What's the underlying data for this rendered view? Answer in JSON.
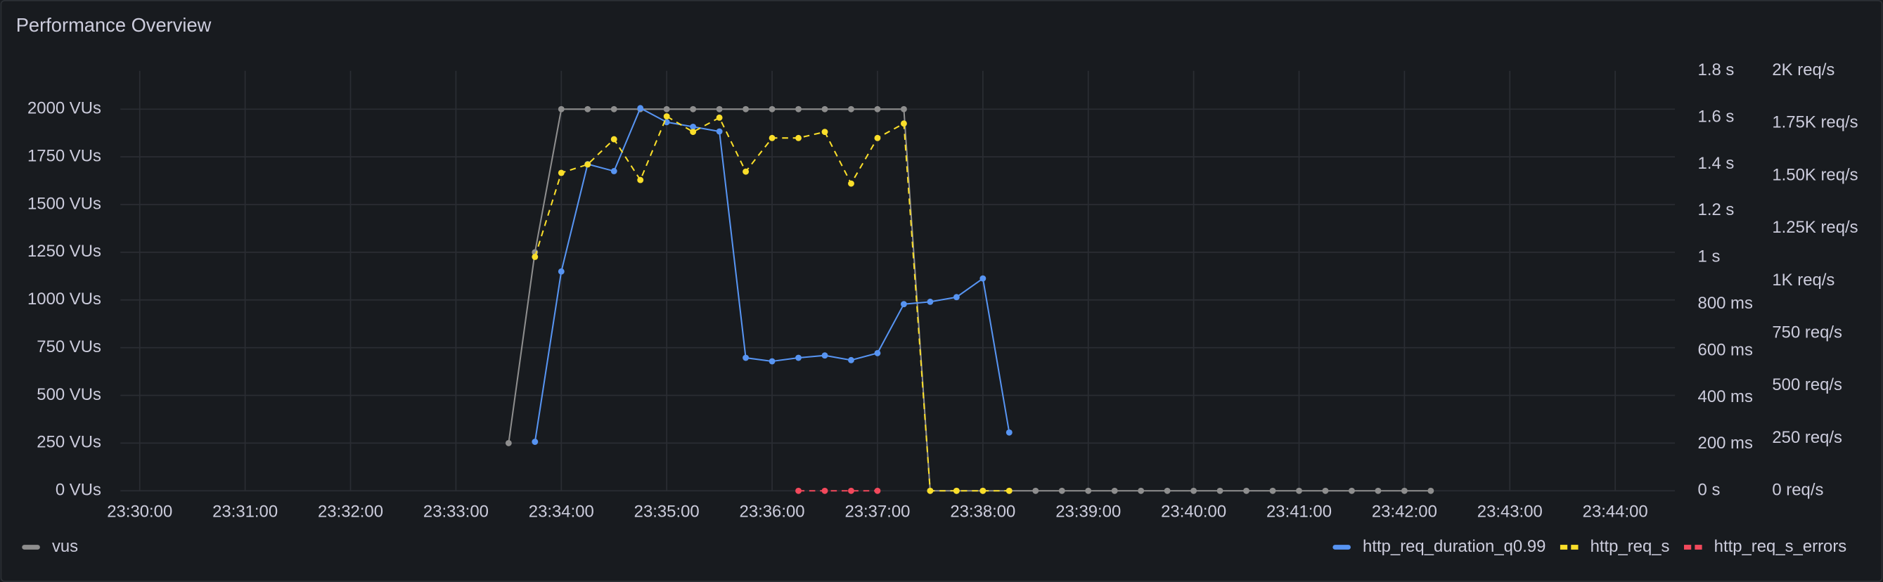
{
  "chart_data": {
    "type": "line",
    "title": "Performance Overview",
    "x": [
      "23:33:30",
      "23:33:45",
      "23:34:00",
      "23:34:15",
      "23:34:30",
      "23:34:45",
      "23:35:00",
      "23:35:15",
      "23:35:30",
      "23:35:45",
      "23:36:00",
      "23:36:15",
      "23:36:30",
      "23:36:45",
      "23:37:00",
      "23:37:15",
      "23:37:30",
      "23:37:45",
      "23:38:00",
      "23:38:15",
      "23:38:30",
      "23:38:45",
      "23:39:00",
      "23:39:15",
      "23:39:30",
      "23:39:45",
      "23:40:00",
      "23:40:15",
      "23:40:30",
      "23:40:45",
      "23:41:00",
      "23:41:15",
      "23:41:30",
      "23:41:45",
      "23:42:00",
      "23:42:15"
    ],
    "xlim": [
      "23:29:49",
      "23:44:34"
    ],
    "xticks": [
      "23:30:00",
      "23:31:00",
      "23:32:00",
      "23:33:00",
      "23:34:00",
      "23:35:00",
      "23:36:00",
      "23:37:00",
      "23:38:00",
      "23:39:00",
      "23:40:00",
      "23:41:00",
      "23:42:00",
      "23:43:00",
      "23:44:00"
    ],
    "ylim": [
      0,
      2201
    ],
    "yticks": [
      {
        "value": 0,
        "label": "0 VUs"
      },
      {
        "value": 250,
        "label": "250 VUs"
      },
      {
        "value": 500,
        "label": "500 VUs"
      },
      {
        "value": 750,
        "label": "750 VUs"
      },
      {
        "value": 1000,
        "label": "1000 VUs"
      },
      {
        "value": 1250,
        "label": "1250 VUs"
      },
      {
        "value": 1500,
        "label": "1500 VUs"
      },
      {
        "value": 1750,
        "label": "1750 VUs"
      },
      {
        "value": 2000,
        "label": "2000 VUs"
      }
    ],
    "y2lim": [
      0,
      1.8
    ],
    "y2ticks": [
      {
        "value": 0,
        "label": "0 s"
      },
      {
        "value": 0.2,
        "label": "200 ms"
      },
      {
        "value": 0.4,
        "label": "400 ms"
      },
      {
        "value": 0.6,
        "label": "600 ms"
      },
      {
        "value": 0.8,
        "label": "800 ms"
      },
      {
        "value": 1,
        "label": "1 s"
      },
      {
        "value": 1.2,
        "label": "1.2 s"
      },
      {
        "value": 1.4,
        "label": "1.4 s"
      },
      {
        "value": 1.6,
        "label": "1.6 s"
      },
      {
        "value": 1.8,
        "label": "1.8 s"
      }
    ],
    "y3lim": [
      0,
      2000
    ],
    "y3ticks": [
      {
        "value": 0,
        "label": "0 req/s"
      },
      {
        "value": 250,
        "label": "250 req/s"
      },
      {
        "value": 500,
        "label": "500 req/s"
      },
      {
        "value": 750,
        "label": "750 req/s"
      },
      {
        "value": 1000,
        "label": "1K req/s"
      },
      {
        "value": 1250,
        "label": "1.25K req/s"
      },
      {
        "value": 1500,
        "label": "1.50K req/s"
      },
      {
        "value": 1750,
        "label": "1.75K req/s"
      },
      {
        "value": 2000,
        "label": "2K req/s"
      }
    ],
    "grid": true,
    "series": [
      {
        "name": "vus",
        "color": "#8e8e8e",
        "axis": "y",
        "dashed": false,
        "values": [
          250,
          1250,
          2000,
          2000,
          2000,
          2000,
          2000,
          2000,
          2000,
          2000,
          2000,
          2000,
          2000,
          2000,
          2000,
          2000,
          0,
          0,
          0,
          0,
          0,
          0,
          0,
          0,
          0,
          0,
          0,
          0,
          0,
          0,
          0,
          0,
          0,
          0,
          0,
          0
        ]
      },
      {
        "name": "http_req_duration_q0.99",
        "color": "#5794f2",
        "axis": "y2",
        "dashed": false,
        "values": [
          null,
          0.21,
          0.94,
          1.4,
          1.37,
          1.64,
          1.58,
          1.56,
          1.54,
          0.57,
          0.555,
          0.57,
          0.58,
          0.56,
          0.59,
          0.8,
          0.81,
          0.83,
          0.91,
          0.25,
          null,
          null,
          null,
          null,
          null,
          null,
          null,
          null,
          null,
          null,
          null,
          null,
          null,
          null,
          null,
          null
        ]
      },
      {
        "name": "http_req_s",
        "color": "#fade2a",
        "axis": "y3",
        "dashed": true,
        "values": [
          null,
          1114,
          1514,
          1554,
          1674,
          1480,
          1783,
          1709,
          1777,
          1520,
          1680,
          1680,
          1709,
          1463,
          1680,
          1749,
          0,
          0,
          0,
          0,
          null,
          null,
          null,
          null,
          null,
          null,
          null,
          null,
          null,
          null,
          null,
          null,
          null,
          null,
          null,
          null
        ]
      },
      {
        "name": "http_req_s_errors",
        "color": "#f2495c",
        "axis": "y3",
        "dashed": true,
        "values": [
          null,
          null,
          null,
          null,
          null,
          null,
          null,
          null,
          null,
          null,
          null,
          0,
          0,
          0,
          0,
          null,
          null,
          null,
          null,
          null,
          null,
          null,
          null,
          null,
          null,
          null,
          null,
          null,
          null,
          null,
          null,
          null,
          null,
          null,
          null,
          null
        ]
      }
    ]
  }
}
